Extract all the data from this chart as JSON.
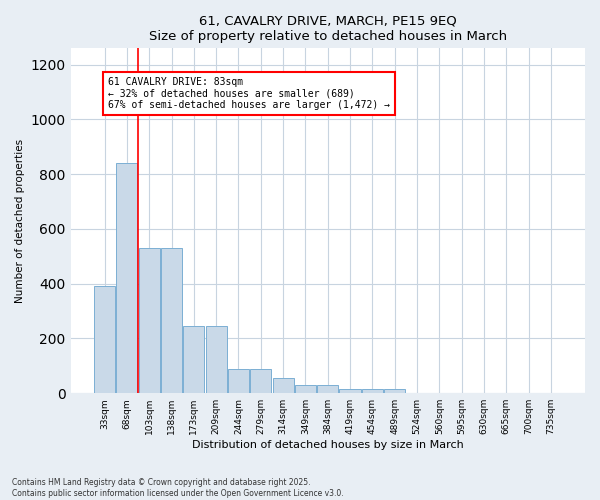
{
  "title_line1": "61, CAVALRY DRIVE, MARCH, PE15 9EQ",
  "title_line2": "Size of property relative to detached houses in March",
  "xlabel": "Distribution of detached houses by size in March",
  "ylabel": "Number of detached properties",
  "bar_labels": [
    "33sqm",
    "68sqm",
    "103sqm",
    "138sqm",
    "173sqm",
    "209sqm",
    "244sqm",
    "279sqm",
    "314sqm",
    "349sqm",
    "384sqm",
    "419sqm",
    "454sqm",
    "489sqm",
    "524sqm",
    "560sqm",
    "595sqm",
    "630sqm",
    "665sqm",
    "700sqm",
    "735sqm"
  ],
  "bar_values": [
    390,
    840,
    530,
    530,
    245,
    245,
    90,
    90,
    55,
    30,
    30,
    15,
    15,
    15,
    0,
    0,
    0,
    0,
    0,
    0,
    0
  ],
  "bar_color": "#c9d9e8",
  "bar_edge_color": "#7bafd4",
  "ylim": [
    0,
    1260
  ],
  "yticks": [
    0,
    200,
    400,
    600,
    800,
    1000,
    1200
  ],
  "red_line_x": 1.5,
  "annotation_title": "61 CAVALRY DRIVE: 83sqm",
  "annotation_line2": "← 32% of detached houses are smaller (689)",
  "annotation_line3": "67% of semi-detached houses are larger (1,472) →",
  "footnote1": "Contains HM Land Registry data © Crown copyright and database right 2025.",
  "footnote2": "Contains public sector information licensed under the Open Government Licence v3.0.",
  "background_color": "#e8eef4",
  "plot_bg_color": "#ffffff",
  "grid_color": "#c8d4e0"
}
